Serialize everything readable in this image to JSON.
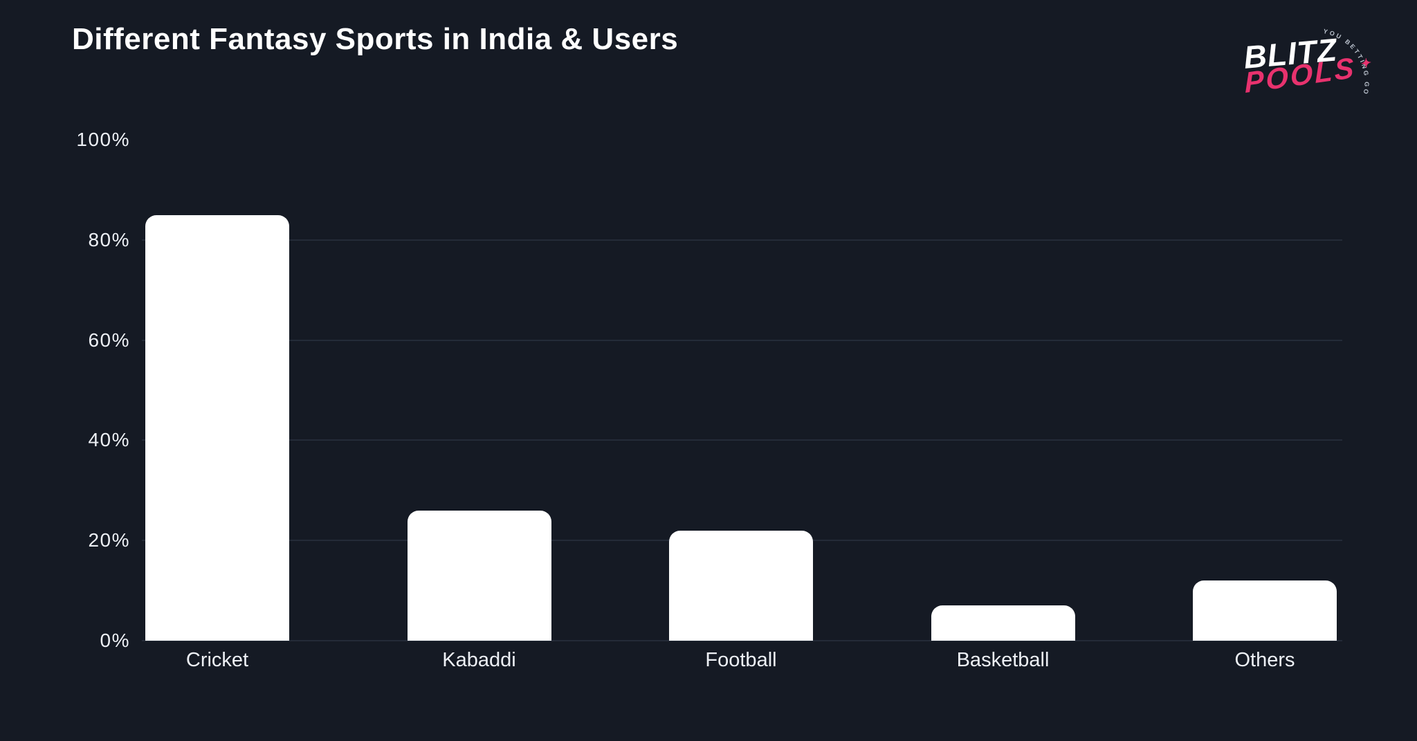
{
  "page": {
    "background_color": "#151a24",
    "text_color": "#edf0f5"
  },
  "header": {
    "title": "Different Fantasy Sports in India & Users"
  },
  "logo": {
    "line1": "BLITZ",
    "line2": "POOLS",
    "star": "✦",
    "arc_text": "YOU BETTING GOALS",
    "brand_pink": "#e8326e",
    "brand_white": "#ffffff"
  },
  "chart_data": {
    "type": "bar",
    "title": "Different Fantasy Sports in India & Users",
    "categories": [
      "Cricket",
      "Kabaddi",
      "Football",
      "Basketball",
      "Others"
    ],
    "values": [
      85,
      26,
      22,
      7,
      12
    ],
    "unit": "%",
    "xlabel": "",
    "ylabel": "",
    "ylim": [
      0,
      100
    ],
    "yticks": [
      0,
      20,
      40,
      60,
      80,
      100
    ],
    "ytick_labels": [
      "0%",
      "20%",
      "40%",
      "60%",
      "80%",
      "100%"
    ],
    "grid": "horizontal",
    "legend": "none",
    "bar_color": "#ffffff",
    "gridline_color": "#242b38",
    "background": "#151a24"
  }
}
